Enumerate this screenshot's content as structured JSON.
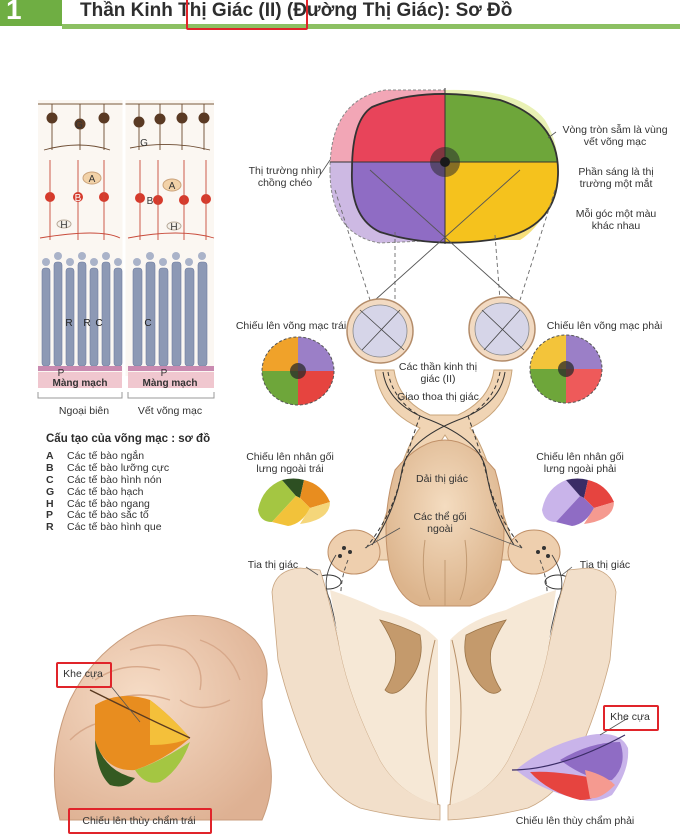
{
  "header": {
    "section_number": "1",
    "title_pre": "Thần Kinh ",
    "title_highlight": "Thị Giác (II)",
    "title_post": " (Đường Thị Giác): Sơ Đồ"
  },
  "retina_diagram": {
    "cell_letters": [
      "G",
      "G",
      "A",
      "A",
      "B",
      "B",
      "H",
      "H",
      "R",
      "R",
      "C",
      "C",
      "P",
      "P"
    ],
    "membrane_left": "Màng mạch",
    "membrane_right": "Màng mạch",
    "caption_left": "Ngoại biên",
    "caption_right": "Vết võng mạc"
  },
  "legend": {
    "title": "Cấu tạo của võng mạc : sơ đồ",
    "items": [
      {
        "key": "A",
        "text": "Các tế bào ngắn"
      },
      {
        "key": "B",
        "text": "Các tế bào lưỡng cực"
      },
      {
        "key": "C",
        "text": "Các tế bào hình nón"
      },
      {
        "key": "G",
        "text": "Các tế bào hạch"
      },
      {
        "key": "H",
        "text": "Các tế bào ngang"
      },
      {
        "key": "P",
        "text": "Các tế bào sắc tố"
      },
      {
        "key": "R",
        "text": "Các tế bào hình que"
      }
    ]
  },
  "labels": {
    "crossed_field": "Thị trường nhìn chồng chéo",
    "dark_circle": "Vòng tròn sẫm là vùng vết võng mạc",
    "light_part": "Phần sáng là thị trường một mắt",
    "colors_note": "Mỗi góc một màu khác nhau",
    "proj_left_retina": "Chiếu lên võng mạc trái",
    "proj_right_retina": "Chiếu lên võng mạc phải",
    "optic_nerves": "Các thần kinh thị giác (II)",
    "chiasm": "Giao thoa thị giác",
    "optic_tract": "Dải thị giác",
    "proj_lgn_left": "Chiếu lên nhân gối lưng ngoài trái",
    "proj_lgn_right": "Chiếu lên nhân gối lưng ngoài phải",
    "lgn_bodies": "Các thể gối ngoài",
    "radiation_left": "Tia thị giác",
    "radiation_right": "Tia thị giác",
    "calcarine_left": "Khe cựa",
    "calcarine_right": "Khe cựa",
    "proj_occipital_left": "Chiếu lên thùy chẩm trái",
    "proj_occipital_right": "Chiếu lên thùy chẩm phải"
  },
  "colors": {
    "accent_green": "#8cc063",
    "highlight_red": "#e0242a",
    "field_pink": "#ee8fa0",
    "field_green": "#6ea63a",
    "field_purple": "#9b7fc7",
    "field_yellow": "#f3c43a",
    "field_red": "#e6443f",
    "field_orange": "#f0a22a"
  }
}
